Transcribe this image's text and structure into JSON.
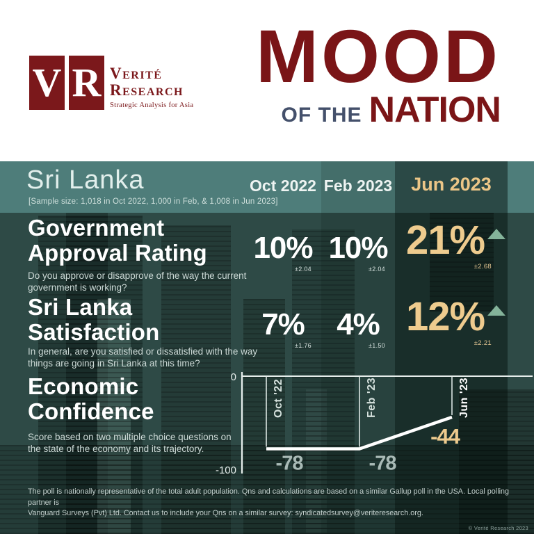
{
  "brand": {
    "logo_letters": [
      "V",
      "R"
    ],
    "name_line1": "Verité",
    "name_line2": "Research",
    "tagline": "Strategic Analysis for Asia"
  },
  "title": {
    "word1": "MOOD",
    "word2": "OF THE",
    "word3": "NATION"
  },
  "header": {
    "country": "Sri Lanka",
    "sample_note": "[Sample size: 1,018 in Oct 2022, 1,000 in Feb, & 1,008 in Jun 2023]",
    "columns": [
      "Oct 2022",
      "Feb 2023",
      "Jun 2023"
    ]
  },
  "metrics": [
    {
      "title_lines": [
        "Government",
        "Approval Rating"
      ],
      "question": "Do you approve or disapprove of the way the current government is working?",
      "values": [
        {
          "value": "10%",
          "moe": "±2.04"
        },
        {
          "value": "10%",
          "moe": "±2.04"
        },
        {
          "value": "21%",
          "moe": "±2.68",
          "trend": "up"
        }
      ]
    },
    {
      "title_lines": [
        "Sri Lanka",
        "Satisfaction"
      ],
      "question": "In general, are you satisfied or dissatisfied with the way things are going in Sri Lanka at this time?",
      "values": [
        {
          "value": "7%",
          "moe": "±1.76"
        },
        {
          "value": "4%",
          "moe": "±1.50"
        },
        {
          "value": "12%",
          "moe": "±2.21",
          "trend": "up"
        }
      ]
    }
  ],
  "economic": {
    "title_lines": [
      "Economic",
      "Confidence"
    ],
    "description": "Score based on two multiple choice questions on the state of the economy and its trajectory."
  },
  "chart_data": [
    {
      "type": "table",
      "title": "Mood of the Nation — Sri Lanka",
      "categories": [
        "Oct 2022",
        "Feb 2023",
        "Jun 2023"
      ],
      "series": [
        {
          "name": "Government Approval Rating",
          "unit": "%",
          "values": [
            10,
            10,
            21
          ],
          "margins_of_error": [
            2.04,
            2.04,
            2.68
          ]
        },
        {
          "name": "Sri Lanka Satisfaction",
          "unit": "%",
          "values": [
            7,
            4,
            12
          ],
          "margins_of_error": [
            1.76,
            1.5,
            2.21
          ]
        }
      ]
    },
    {
      "type": "line",
      "title": "Economic Confidence",
      "categories": [
        "Oct '22",
        "Feb '23",
        "Jun '23"
      ],
      "values": [
        -78,
        -78,
        -44
      ],
      "value_labels": [
        "-78",
        "-78",
        "-44"
      ],
      "ylim": [
        -100,
        0
      ],
      "yticks": [
        0,
        -100
      ],
      "highlight_index": 2,
      "grid": false,
      "legend": false
    }
  ],
  "footer": {
    "note_lines": [
      "The poll is nationally representative of the total adult population. Qns and calculations are based on a similar Gallup poll in the USA. Local polling partner is",
      "Vanguard Surveys (Pvt) Ltd. Contact us to include your Qns on a similar survey: syndicatedsurvey@veriteresearch.org."
    ],
    "copyright": "© Verité Research 2023"
  },
  "colors": {
    "maroon": "#7a1517",
    "navy": "#44506b",
    "header_teal": "#4e7d7a",
    "body_teal": "#2e4a46",
    "gold": "#eecb8e",
    "arrow_green": "#84b39a",
    "line_white": "#ffffff",
    "muted_label": "#a9bab6"
  }
}
